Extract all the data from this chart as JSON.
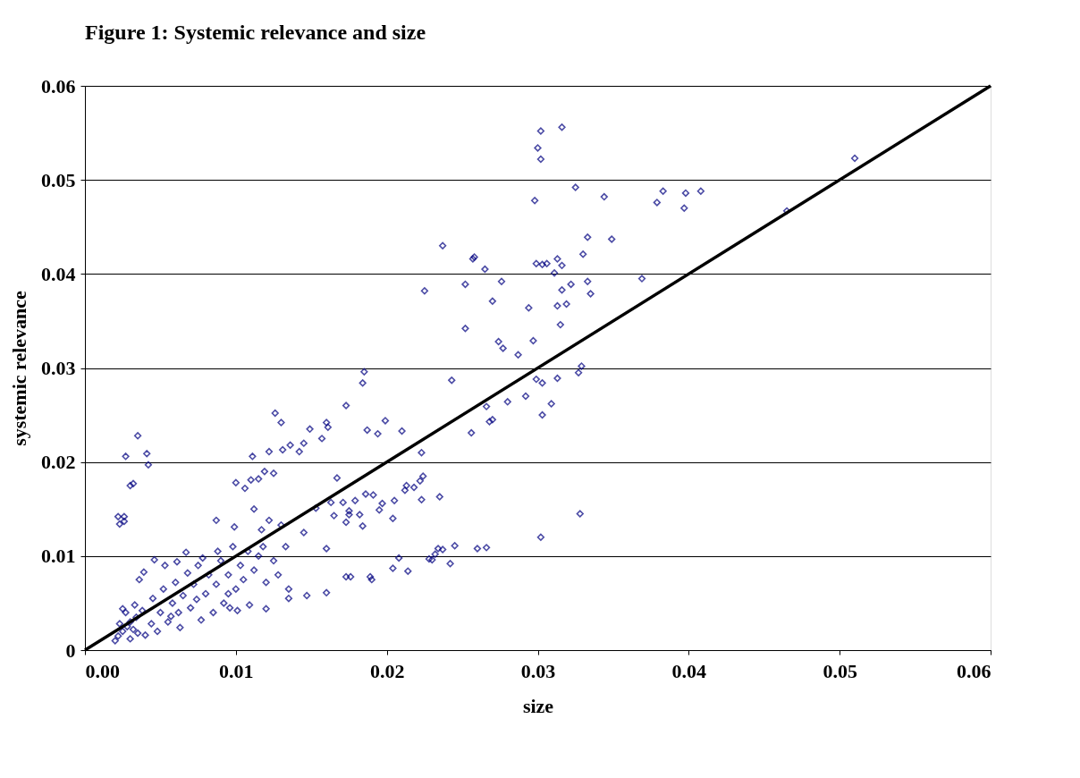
{
  "chart_data": {
    "type": "scatter",
    "title": "Figure 1: Systemic relevance and size",
    "xlabel": "size",
    "ylabel": "systemic relevance",
    "xlim": [
      0,
      0.06
    ],
    "ylim": [
      0,
      0.06
    ],
    "xticks": [
      {
        "value": 0,
        "label": "0.00"
      },
      0.01,
      0.02,
      0.03,
      0.04,
      0.05,
      0.06
    ],
    "yticks": [
      0,
      0.01,
      0.02,
      0.03,
      0.04,
      0.05,
      0.06
    ],
    "grid": "y",
    "marker": "diamond",
    "series": [
      {
        "type": "scatter",
        "color": "#000080",
        "x": [
          0.0316,
          0.0302,
          0.03,
          0.0302,
          0.0325,
          0.0298,
          0.0344,
          0.0383,
          0.0379,
          0.0398,
          0.0397,
          0.0408,
          0.051,
          0.0465,
          0.0237,
          0.0258,
          0.0257,
          0.0265,
          0.0299,
          0.0303,
          0.0311,
          0.0313,
          0.0316,
          0.0322,
          0.0333,
          0.0349,
          0.033,
          0.0333,
          0.0335,
          0.0313,
          0.0319,
          0.0316,
          0.0315,
          0.0369,
          0.0276,
          0.0252,
          0.027,
          0.0294,
          0.0225,
          0.0274,
          0.0277,
          0.0252,
          0.0287,
          0.0297,
          0.0243,
          0.028,
          0.0266,
          0.0256,
          0.027,
          0.0268,
          0.0292,
          0.0299,
          0.0303,
          0.0309,
          0.0313,
          0.0303,
          0.0306,
          0.0327,
          0.0329,
          0.0302,
          0.0328,
          0.0185,
          0.0184,
          0.0126,
          0.013,
          0.016,
          0.0161,
          0.0173,
          0.0199,
          0.021,
          0.0194,
          0.0187,
          0.0223,
          0.0149,
          0.0157,
          0.0145,
          0.0136,
          0.0122,
          0.0125,
          0.0131,
          0.0111,
          0.01,
          0.011,
          0.0115,
          0.0119,
          0.0106,
          0.0142,
          0.0153,
          0.0175,
          0.0167,
          0.0171,
          0.0179,
          0.0186,
          0.0191,
          0.0197,
          0.0205,
          0.0204,
          0.0212,
          0.0218,
          0.0222,
          0.0224,
          0.0223,
          0.0235,
          0.0184,
          0.0173,
          0.0175,
          0.0165,
          0.0163,
          0.0182,
          0.0195,
          0.0213,
          0.0112,
          0.0117,
          0.0122,
          0.013,
          0.0145,
          0.016,
          0.0133,
          0.0087,
          0.0099,
          0.0189,
          0.019,
          0.0173,
          0.0176,
          0.0204,
          0.0208,
          0.0214,
          0.0228,
          0.0232,
          0.023,
          0.0237,
          0.0234,
          0.0245,
          0.026,
          0.0266,
          0.0242,
          0.016,
          0.0147,
          0.0135,
          0.0135,
          0.012,
          0.0109,
          0.0096,
          0.0101,
          0.0035,
          0.0027,
          0.0041,
          0.0042,
          0.003,
          0.0032,
          0.0022,
          0.0026,
          0.0023,
          0.0026,
          0.002,
          0.0022,
          0.0025,
          0.0023,
          0.0027,
          0.0025,
          0.003,
          0.0032,
          0.0035,
          0.0034,
          0.0038,
          0.0036,
          0.0039,
          0.0044,
          0.0045,
          0.0046,
          0.0048,
          0.005,
          0.0052,
          0.0053,
          0.0055,
          0.0058,
          0.006,
          0.0061,
          0.0063,
          0.0065,
          0.0067,
          0.007,
          0.0072,
          0.0075,
          0.0077,
          0.008,
          0.0082,
          0.0085,
          0.0087,
          0.009,
          0.0092,
          0.0095,
          0.0098,
          0.01,
          0.0103,
          0.0105,
          0.0108,
          0.0112,
          0.0115,
          0.0118,
          0.012,
          0.0125,
          0.0128,
          0.003,
          0.004,
          0.0028,
          0.0033,
          0.0057,
          0.0068,
          0.0078,
          0.0088,
          0.0062,
          0.0074,
          0.0095
        ],
        "values": [
          0.0556,
          0.0552,
          0.0534,
          0.0522,
          0.0492,
          0.0478,
          0.0482,
          0.0488,
          0.0476,
          0.0486,
          0.047,
          0.0488,
          0.0523,
          0.0467,
          0.043,
          0.0418,
          0.0416,
          0.0405,
          0.0411,
          0.041,
          0.0401,
          0.0416,
          0.0409,
          0.0389,
          0.0439,
          0.0437,
          0.0421,
          0.0392,
          0.0379,
          0.0366,
          0.0368,
          0.0383,
          0.0346,
          0.0395,
          0.0392,
          0.0389,
          0.0371,
          0.0364,
          0.0382,
          0.0328,
          0.0321,
          0.0342,
          0.0314,
          0.0329,
          0.0287,
          0.0264,
          0.0259,
          0.0231,
          0.0245,
          0.0243,
          0.027,
          0.0288,
          0.0284,
          0.0262,
          0.0289,
          0.025,
          0.0411,
          0.0295,
          0.0302,
          0.012,
          0.0145,
          0.0296,
          0.0284,
          0.0252,
          0.0242,
          0.0242,
          0.0237,
          0.026,
          0.0244,
          0.0233,
          0.023,
          0.0234,
          0.021,
          0.0235,
          0.0225,
          0.022,
          0.0218,
          0.0211,
          0.0188,
          0.0213,
          0.0206,
          0.0178,
          0.0181,
          0.0182,
          0.019,
          0.0172,
          0.0211,
          0.0151,
          0.0148,
          0.0183,
          0.0157,
          0.0159,
          0.0166,
          0.0165,
          0.0156,
          0.0159,
          0.014,
          0.017,
          0.0173,
          0.018,
          0.0185,
          0.016,
          0.0163,
          0.0132,
          0.0136,
          0.0144,
          0.0143,
          0.0157,
          0.0144,
          0.0149,
          0.0175,
          0.015,
          0.0128,
          0.0138,
          0.0133,
          0.0125,
          0.0108,
          0.011,
          0.0138,
          0.0131,
          0.0078,
          0.0075,
          0.0078,
          0.0078,
          0.0087,
          0.0098,
          0.0084,
          0.0097,
          0.0102,
          0.0096,
          0.0107,
          0.0108,
          0.0111,
          0.0108,
          0.0109,
          0.0092,
          0.0061,
          0.0058,
          0.0065,
          0.0055,
          0.0044,
          0.0048,
          0.0045,
          0.0042,
          0.0228,
          0.0206,
          0.0209,
          0.0197,
          0.0175,
          0.0177,
          0.0142,
          0.0142,
          0.0134,
          0.0137,
          0.001,
          0.0015,
          0.002,
          0.0028,
          0.004,
          0.0044,
          0.003,
          0.0022,
          0.0018,
          0.0035,
          0.0042,
          0.0075,
          0.0083,
          0.0028,
          0.0055,
          0.0096,
          0.002,
          0.004,
          0.0065,
          0.009,
          0.003,
          0.005,
          0.0072,
          0.0094,
          0.0024,
          0.0058,
          0.0104,
          0.0045,
          0.007,
          0.009,
          0.0032,
          0.006,
          0.008,
          0.004,
          0.007,
          0.0095,
          0.005,
          0.008,
          0.011,
          0.0065,
          0.009,
          0.0075,
          0.0105,
          0.0085,
          0.01,
          0.011,
          0.0072,
          0.0095,
          0.008,
          0.0012,
          0.0016,
          0.0025,
          0.0048,
          0.0036,
          0.0082,
          0.0098,
          0.0105,
          0.004,
          0.0054,
          0.006
        ]
      },
      {
        "type": "line",
        "marker": "none",
        "color": "#000000",
        "x": [
          0,
          0.06
        ],
        "values": [
          0,
          0.06
        ]
      }
    ]
  }
}
